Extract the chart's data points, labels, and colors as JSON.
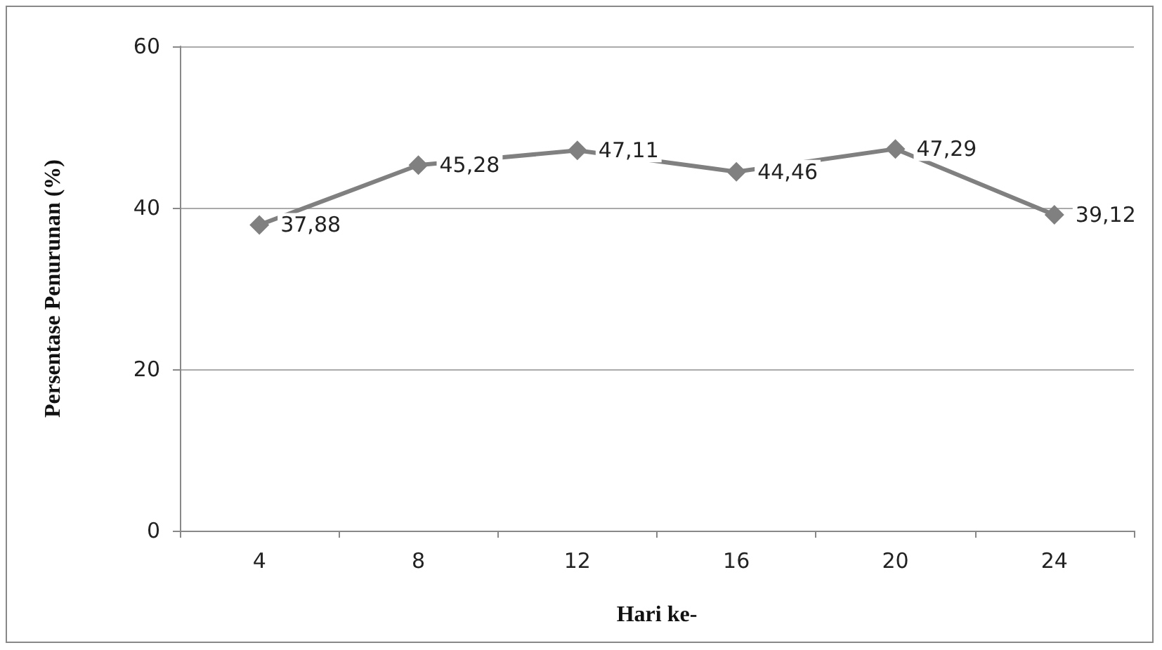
{
  "chart_data": {
    "type": "line",
    "xlabel": "Hari ke-",
    "ylabel": "Persentase Penurunan (%)",
    "categories": [
      "4",
      "8",
      "12",
      "16",
      "20",
      "24"
    ],
    "series": [
      {
        "color": "#808080",
        "values": [
          37.88,
          45.28,
          47.11,
          44.46,
          47.29,
          39.12
        ],
        "value_labels": [
          "37,88",
          "45,28",
          "47,11",
          "44,46",
          "47,29",
          "39,12"
        ]
      }
    ],
    "ylim": [
      0,
      60
    ],
    "yticks": [
      0,
      20,
      40,
      60
    ],
    "grid": "y",
    "marker": "diamond",
    "line_style": "solid"
  }
}
